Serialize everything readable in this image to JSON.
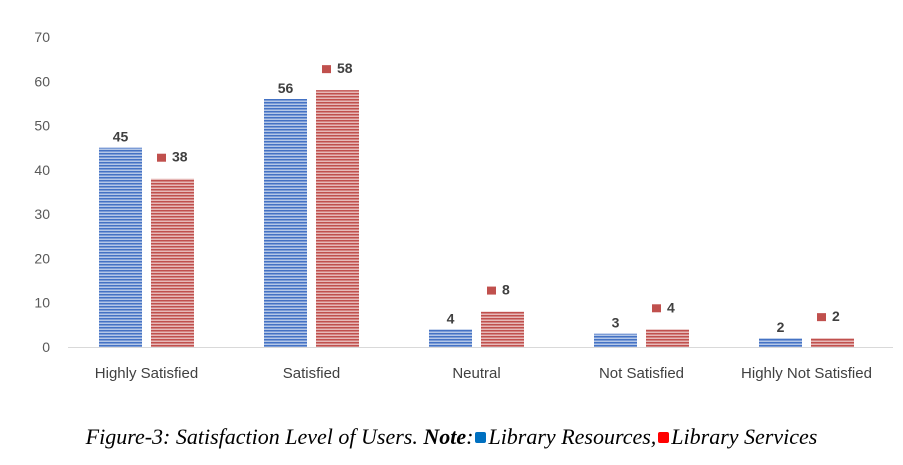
{
  "chart_data": {
    "type": "bar",
    "categories": [
      "Highly Satisfied",
      "Satisfied",
      "Neutral",
      "Not Satisfied",
      "Highly Not Satisfied"
    ],
    "series": [
      {
        "name": "Library Resources",
        "values": [
          45,
          56,
          4,
          3,
          2
        ],
        "color": "#4472C4"
      },
      {
        "name": "Library Services",
        "values": [
          38,
          58,
          8,
          4,
          2
        ],
        "color": "#C0504D"
      }
    ],
    "ylim": [
      0,
      70
    ],
    "yticks": [
      0,
      10,
      20,
      30,
      40,
      50,
      60,
      70
    ],
    "grid": false,
    "legend": "caption"
  },
  "caption": {
    "prefix": "Figure-3: Satisfaction Level of Users. ",
    "note": "Note",
    "colon": ":",
    "legend1": "Library Resources,",
    "legend2": "Library Services",
    "legend1_color": "#0070C0",
    "legend2_color": "#FF0000"
  }
}
